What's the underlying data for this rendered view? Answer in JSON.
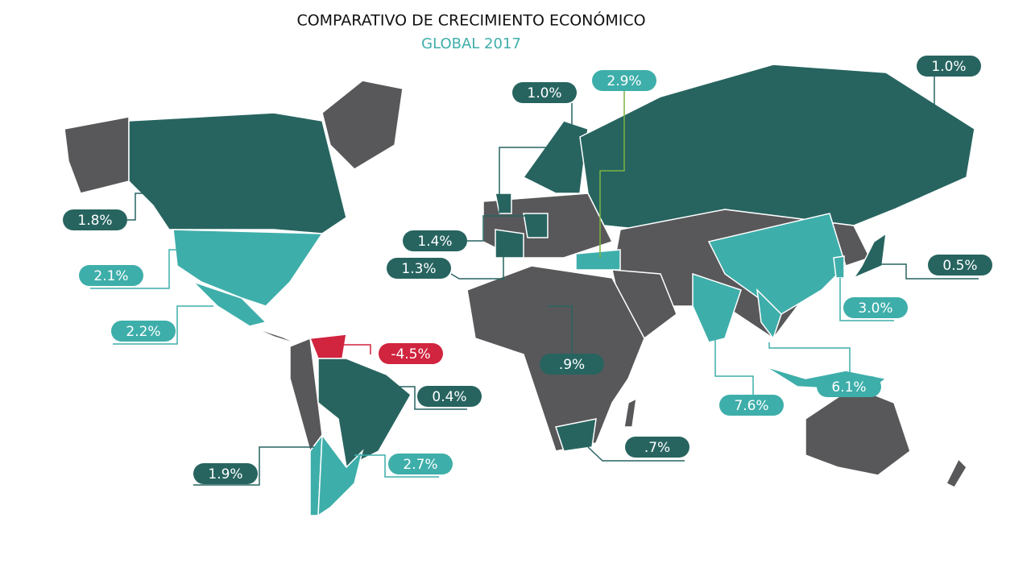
{
  "title": "COMPARATIVO DE CRECIMIENTO ECONÓMICO",
  "subtitle": "GLOBAL 2017",
  "labels": [
    {
      "text": "1.0%",
      "color": "#276460"
    },
    {
      "text": "2.9%",
      "color": "#3eaeaa"
    },
    {
      "text": "1.0%",
      "color": "#276460"
    },
    {
      "text": "1.8%",
      "color": "#276460"
    },
    {
      "text": "1.4%",
      "color": "#276460"
    },
    {
      "text": "1.3%",
      "color": "#276460"
    },
    {
      "text": "0.5%",
      "color": "#276460"
    },
    {
      "text": "2.1%",
      "color": "#3eaeaa"
    },
    {
      "text": "3.0%",
      "color": "#3eaeaa"
    },
    {
      "text": "2.2%",
      "color": "#3eaeaa"
    },
    {
      "text": "-4.5%",
      "color": "#d0243f"
    },
    {
      "text": ".9%",
      "color": "#276460"
    },
    {
      "text": "6.1%",
      "color": "#3eaeaa"
    },
    {
      "text": "0.4%",
      "color": "#276460"
    },
    {
      "text": "7.6%",
      "color": "#3eaeaa"
    },
    {
      "text": ".7%",
      "color": "#276460"
    },
    {
      "text": "2.7%",
      "color": "#3eaeaa"
    },
    {
      "text": "1.9%",
      "color": "#276460"
    }
  ]
}
